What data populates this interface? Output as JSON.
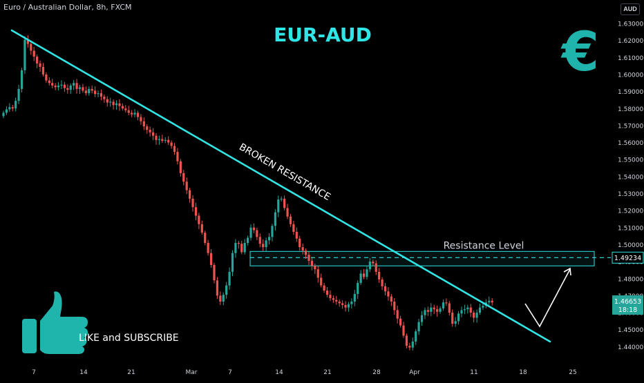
{
  "header": {
    "symbol_title": "Euro / Australian Dollar, 8h, FXCM",
    "currency_button": "AUD"
  },
  "overlay": {
    "title": "EUR-AUD",
    "euro_symbol": "€",
    "broken_resistance_label": "BROKEN RESISTANCE",
    "resistance_level_label": "Resistance Level",
    "like_subscribe_label": "LIKE and SUBSCRIBE",
    "thumbs_up_icon": "thumbs-up-icon",
    "euro_icon": "euro-icon"
  },
  "price_axis": {
    "labels": [
      "1.63000",
      "1.62000",
      "1.61000",
      "1.60000",
      "1.59000",
      "1.58000",
      "1.57000",
      "1.56000",
      "1.55000",
      "1.54000",
      "1.53000",
      "1.52000",
      "1.51000",
      "1.50000",
      "1.49000",
      "1.48000",
      "1.47000",
      "1.46000",
      "1.45000",
      "1.44000"
    ],
    "resistance_price_tag": "1.49234",
    "current_price_tag": "1.46653",
    "countdown_tag": "18:18"
  },
  "time_axis": {
    "labels": [
      "7",
      "14",
      "21",
      "Mar",
      "7",
      "14",
      "21",
      "28",
      "Apr",
      "11",
      "18",
      "25"
    ]
  },
  "colors": {
    "background": "#000000",
    "up_candle": "#26a69a",
    "down_candle": "#ef5350",
    "accent_cyan": "#2ee6e6",
    "price_tag_green": "#26a69a"
  },
  "chart_data": {
    "type": "candlestick",
    "symbol": "EURAUD",
    "timeframe": "8h",
    "ylim": [
      1.4355,
      1.6375
    ],
    "x_ticks": [
      "7",
      "14",
      "21",
      "Mar",
      "7",
      "14",
      "21",
      "28",
      "Apr",
      "11",
      "18",
      "25"
    ],
    "closes": [
      1.5775,
      1.5795,
      1.5808,
      1.58,
      1.5845,
      1.5915,
      1.6025,
      1.6205,
      1.618,
      1.614,
      1.6105,
      1.6065,
      1.6045,
      1.6,
      1.5965,
      1.595,
      1.5935,
      1.5925,
      1.5935,
      1.594,
      1.592,
      1.591,
      1.5935,
      1.595,
      1.5915,
      1.5925,
      1.5905,
      1.589,
      1.5915,
      1.5905,
      1.5885,
      1.589,
      1.587,
      1.5855,
      1.5835,
      1.584,
      1.582,
      1.583,
      1.5815,
      1.58,
      1.579,
      1.5775,
      1.5765,
      1.5775,
      1.575,
      1.5725,
      1.5695,
      1.5675,
      1.566,
      1.564,
      1.5615,
      1.562,
      1.561,
      1.5615,
      1.56,
      1.558,
      1.5545,
      1.549,
      1.542,
      1.537,
      1.532,
      1.527,
      1.522,
      1.517,
      1.512,
      1.507,
      1.501,
      1.495,
      1.488,
      1.479,
      1.47,
      1.4665,
      1.4705,
      1.476,
      1.484,
      1.495,
      1.501,
      1.5005,
      1.4955,
      1.501,
      1.504,
      1.51,
      1.5085,
      1.5045,
      1.5005,
      1.4985,
      1.5025,
      1.5045,
      1.511,
      1.519,
      1.5265,
      1.527,
      1.5215,
      1.5165,
      1.512,
      1.5075,
      1.5035,
      1.4985,
      1.4965,
      1.494,
      1.4905,
      1.4875,
      1.4855,
      1.4805,
      1.476,
      1.473,
      1.4705,
      1.4685,
      1.4675,
      1.4665,
      1.4655,
      1.4645,
      1.463,
      1.465,
      1.4665,
      1.471,
      1.4775,
      1.483,
      1.481,
      1.4855,
      1.49,
      1.489,
      1.484,
      1.4795,
      1.4755,
      1.4725,
      1.4695,
      1.4665,
      1.4615,
      1.4565,
      1.4525,
      1.4465,
      1.4405,
      1.4395,
      1.443,
      1.449,
      1.4545,
      1.4585,
      1.4615,
      1.4605,
      1.463,
      1.462,
      1.4605,
      1.4625,
      1.466,
      1.4655,
      1.46,
      1.4535,
      1.455,
      1.4595,
      1.4615,
      1.462,
      1.463,
      1.46,
      1.457,
      1.46,
      1.463,
      1.464,
      1.466,
      1.467,
      1.466
    ],
    "trendline": {
      "label": "BROKEN RESISTANCE",
      "from": {
        "bar": 0,
        "price": 1.628
      },
      "to": {
        "bar": 167,
        "price": 1.446
      }
    },
    "resistance_zone": {
      "label": "Resistance Level",
      "low": 1.4875,
      "high": 1.496,
      "level": 1.49234
    },
    "projection_path": [
      {
        "bar": 164,
        "price": 1.4655
      },
      {
        "bar": 168,
        "price": 1.456
      },
      {
        "bar": 178,
        "price": 1.487
      }
    ],
    "last_price": 1.46653
  }
}
